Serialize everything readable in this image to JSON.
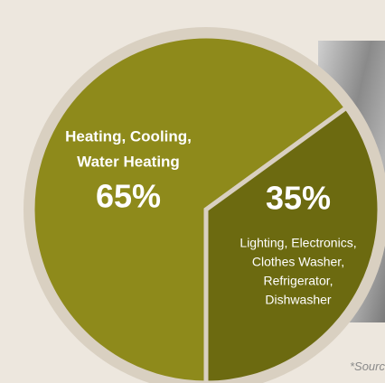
{
  "chart_data": {
    "type": "pie",
    "categories": [
      [
        "Heating, Cooling,",
        "Water Heating"
      ],
      [
        "Lighting, Electronics,",
        "Clothes Washer,",
        "Refrigerator,",
        "Dishwasher"
      ]
    ],
    "values": [
      65,
      35
    ],
    "value_labels": [
      "65%",
      "35%"
    ],
    "colors": [
      "#8e8a1b",
      "#6c6a10"
    ],
    "note": "*Sourc"
  }
}
